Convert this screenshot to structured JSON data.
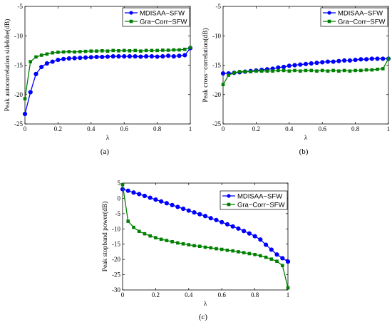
{
  "chart_data": [
    {
      "type": "line",
      "caption": "(a)",
      "xlabel": "λ",
      "ylabel": "Peak autocorrelation sidelobe(dB)",
      "xlim": [
        0,
        1
      ],
      "ylim": [
        -25,
        -5
      ],
      "xticks": [
        0,
        0.2,
        0.4,
        0.6,
        0.8,
        1
      ],
      "xtick_labels": [
        "0",
        "0.2",
        "0.4",
        "0.6",
        "0.8",
        "1"
      ],
      "yticks": [
        -25,
        -20,
        -15,
        -10,
        -5
      ],
      "ytick_labels": [
        "-25",
        "-20",
        "-15",
        "-10",
        "-5"
      ],
      "legend_position": "top-right",
      "grid": false,
      "x": [
        0,
        0.0333,
        0.0667,
        0.1,
        0.1333,
        0.1667,
        0.2,
        0.2333,
        0.2667,
        0.3,
        0.3333,
        0.3667,
        0.4,
        0.4333,
        0.4667,
        0.5,
        0.5333,
        0.5667,
        0.6,
        0.6333,
        0.6667,
        0.7,
        0.7333,
        0.7667,
        0.8,
        0.8333,
        0.8667,
        0.9,
        0.9333,
        0.9667,
        1
      ],
      "series": [
        {
          "name": "MDISAA−SFW",
          "color": "#0000ff",
          "marker": "circle",
          "values": [
            -23.3,
            -19.6,
            -16.5,
            -15.3,
            -14.7,
            -14.4,
            -14.1,
            -13.95,
            -13.85,
            -13.8,
            -13.75,
            -13.7,
            -13.65,
            -13.6,
            -13.6,
            -13.55,
            -13.5,
            -13.5,
            -13.5,
            -13.5,
            -13.5,
            -13.55,
            -13.5,
            -13.5,
            -13.55,
            -13.5,
            -13.4,
            -13.5,
            -13.4,
            -13.3,
            -12.1
          ]
        },
        {
          "name": "Gra−Corr−SFW",
          "color": "#008000",
          "marker": "square",
          "values": [
            -20.7,
            -14.4,
            -13.6,
            -13.3,
            -13.1,
            -12.9,
            -12.8,
            -12.75,
            -12.7,
            -12.75,
            -12.7,
            -12.65,
            -12.6,
            -12.6,
            -12.55,
            -12.6,
            -12.5,
            -12.55,
            -12.5,
            -12.55,
            -12.5,
            -12.6,
            -12.5,
            -12.5,
            -12.5,
            -12.45,
            -12.45,
            -12.4,
            -12.4,
            -12.3,
            -12.0
          ]
        }
      ]
    },
    {
      "type": "line",
      "caption": "(b)",
      "xlabel": "λ",
      "ylabel": "Peak cross−correlation(dB)",
      "xlim": [
        0,
        1
      ],
      "ylim": [
        -25,
        -5
      ],
      "xticks": [
        0,
        0.2,
        0.4,
        0.6,
        0.8,
        1
      ],
      "xtick_labels": [
        "0",
        "0.2",
        "0.4",
        "0.6",
        "0.8",
        "1"
      ],
      "yticks": [
        -25,
        -20,
        -15,
        -10,
        -5
      ],
      "ytick_labels": [
        "-25",
        "-20",
        "-15",
        "-10",
        "-5"
      ],
      "legend_position": "top-right",
      "grid": false,
      "x": [
        0,
        0.0333,
        0.0667,
        0.1,
        0.1333,
        0.1667,
        0.2,
        0.2333,
        0.2667,
        0.3,
        0.3333,
        0.3667,
        0.4,
        0.4333,
        0.4667,
        0.5,
        0.5333,
        0.5667,
        0.6,
        0.6333,
        0.6667,
        0.7,
        0.7333,
        0.7667,
        0.8,
        0.8333,
        0.8667,
        0.9,
        0.9333,
        0.9667,
        1
      ],
      "series": [
        {
          "name": "MDISAA−SFW",
          "color": "#0000ff",
          "marker": "circle",
          "values": [
            -16.4,
            -16.4,
            -16.3,
            -16.2,
            -16.1,
            -16.0,
            -15.9,
            -15.8,
            -15.7,
            -15.6,
            -15.4,
            -15.3,
            -15.1,
            -15.0,
            -14.9,
            -14.8,
            -14.7,
            -14.6,
            -14.5,
            -14.4,
            -14.4,
            -14.3,
            -14.2,
            -14.2,
            -14.1,
            -14.0,
            -14.0,
            -13.9,
            -13.9,
            -13.9,
            -13.9
          ]
        },
        {
          "name": "Gra−Corr−SFW",
          "color": "#008000",
          "marker": "square",
          "values": [
            -18.3,
            -16.7,
            -16.3,
            -16.1,
            -16.1,
            -16.1,
            -16.0,
            -16.0,
            -16.0,
            -16.0,
            -15.9,
            -15.9,
            -16.0,
            -15.9,
            -16.0,
            -15.9,
            -15.9,
            -16.0,
            -15.9,
            -16.0,
            -15.9,
            -16.0,
            -15.9,
            -16.0,
            -15.9,
            -15.9,
            -15.8,
            -15.8,
            -15.7,
            -15.6,
            -13.9
          ]
        }
      ]
    },
    {
      "type": "line",
      "caption": "(c)",
      "xlabel": "λ",
      "ylabel": "Peak stopband power(dB)",
      "xlim": [
        0,
        1
      ],
      "ylim": [
        -30,
        5
      ],
      "xticks": [
        0,
        0.2,
        0.4,
        0.6,
        0.8,
        1
      ],
      "xtick_labels": [
        "0",
        "0.2",
        "0.4",
        "0.6",
        "0.8",
        "1"
      ],
      "yticks": [
        -30,
        -25,
        -20,
        -15,
        -10,
        -5,
        0,
        5
      ],
      "ytick_labels": [
        "-30",
        "-25",
        "-20",
        "-15",
        "-10",
        "-5",
        "0",
        "5"
      ],
      "legend_position": "top-right",
      "grid": false,
      "x": [
        0,
        0.0333,
        0.0667,
        0.1,
        0.1333,
        0.1667,
        0.2,
        0.2333,
        0.2667,
        0.3,
        0.3333,
        0.3667,
        0.4,
        0.4333,
        0.4667,
        0.5,
        0.5333,
        0.5667,
        0.6,
        0.6333,
        0.6667,
        0.7,
        0.7333,
        0.7667,
        0.8,
        0.8333,
        0.8667,
        0.9,
        0.9333,
        0.9667,
        1
      ],
      "series": [
        {
          "name": "MDISAA−SFW",
          "color": "#0000ff",
          "marker": "circle",
          "values": [
            3.0,
            2.5,
            1.9,
            1.4,
            0.8,
            0.2,
            -0.4,
            -1.0,
            -1.6,
            -2.2,
            -2.8,
            -3.4,
            -4.0,
            -4.6,
            -5.2,
            -5.8,
            -6.5,
            -7.1,
            -7.8,
            -8.5,
            -9.2,
            -9.9,
            -10.7,
            -11.5,
            -12.4,
            -13.5,
            -15.2,
            -16.8,
            -18.4,
            -19.6,
            -20.7
          ]
        },
        {
          "name": "Gra−Corr−SFW",
          "color": "#008000",
          "marker": "square",
          "values": [
            4.5,
            -7.5,
            -9.5,
            -10.8,
            -11.6,
            -12.3,
            -12.9,
            -13.4,
            -13.8,
            -14.2,
            -14.6,
            -14.9,
            -15.2,
            -15.5,
            -15.7,
            -16.0,
            -16.2,
            -16.5,
            -16.7,
            -17.0,
            -17.2,
            -17.5,
            -17.8,
            -18.1,
            -18.4,
            -18.8,
            -19.3,
            -19.9,
            -20.6,
            -22.0,
            -29.3
          ]
        }
      ]
    }
  ]
}
